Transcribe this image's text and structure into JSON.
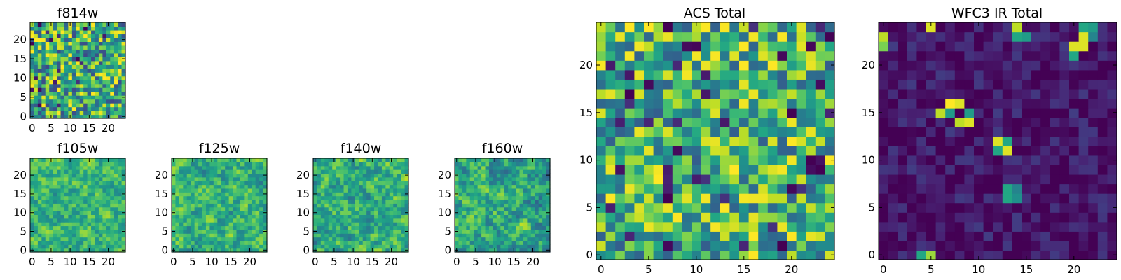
{
  "figure": {
    "description": "Grid of heatmap panels of a 25x25 pixel cutout",
    "colormap": "viridis",
    "colors": {
      "low": "#440154",
      "mid": "#21918c",
      "high": "#fde725"
    }
  },
  "chart_data": [
    {
      "type": "heatmap",
      "panel": "f814w",
      "title": "f814w",
      "grid_size": 25,
      "xticks": [
        0,
        5,
        10,
        15,
        20
      ],
      "yticks": [
        0,
        5,
        10,
        15,
        20
      ],
      "xlim": [
        -0.5,
        24.5
      ],
      "ylim": [
        -0.5,
        24.5
      ],
      "value_range": [
        0,
        1
      ],
      "seed": 11,
      "distribution": "noisy, mostly green-yellow with scattered dark pixels",
      "base": 0.62,
      "amplitude": 0.4,
      "hotspots": []
    },
    {
      "type": "heatmap",
      "panel": "f105w",
      "title": "f105w",
      "grid_size": 25,
      "xticks": [
        0,
        5,
        10,
        15,
        20
      ],
      "yticks": [
        0,
        5,
        10,
        15,
        20
      ],
      "xlim": [
        -0.5,
        24.5
      ],
      "ylim": [
        -0.5,
        24.5
      ],
      "value_range": [
        0,
        1
      ],
      "seed": 23,
      "distribution": "smooth green-yellow noise",
      "base": 0.66,
      "amplitude": 0.34,
      "hotspots": []
    },
    {
      "type": "heatmap",
      "panel": "f125w",
      "title": "f125w",
      "grid_size": 25,
      "xticks": [
        0,
        5,
        10,
        15,
        20
      ],
      "yticks": [
        0,
        5,
        10,
        15,
        20
      ],
      "xlim": [
        -0.5,
        24.5
      ],
      "ylim": [
        -0.5,
        24.5
      ],
      "value_range": [
        0,
        1
      ],
      "seed": 37,
      "distribution": "smooth green-yellow noise",
      "base": 0.64,
      "amplitude": 0.36,
      "hotspots": []
    },
    {
      "type": "heatmap",
      "panel": "f140w",
      "title": "f140w",
      "grid_size": 25,
      "xticks": [
        0,
        5,
        10,
        15,
        20
      ],
      "yticks": [
        0,
        5,
        10,
        15,
        20
      ],
      "xlim": [
        -0.5,
        24.5
      ],
      "ylim": [
        -0.5,
        24.5
      ],
      "value_range": [
        0,
        1
      ],
      "seed": 41,
      "distribution": "smooth green-yellow noise",
      "base": 0.62,
      "amplitude": 0.38,
      "hotspots": []
    },
    {
      "type": "heatmap",
      "panel": "f160w",
      "title": "f160w",
      "grid_size": 25,
      "xticks": [
        0,
        5,
        10,
        15,
        20
      ],
      "yticks": [
        0,
        5,
        10,
        15,
        20
      ],
      "xlim": [
        -0.5,
        24.5
      ],
      "ylim": [
        -0.5,
        24.5
      ],
      "value_range": [
        0,
        1
      ],
      "seed": 53,
      "distribution": "smooth green-yellow noise",
      "base": 0.6,
      "amplitude": 0.4,
      "hotspots": []
    },
    {
      "type": "heatmap",
      "panel": "acs-total",
      "title": "ACS Total",
      "grid_size": 25,
      "xticks": [
        0,
        5,
        10,
        15,
        20
      ],
      "yticks": [
        0,
        5,
        10,
        15,
        20
      ],
      "xlim": [
        -0.5,
        24.5
      ],
      "ylim": [
        -0.5,
        24.5
      ],
      "value_range": [
        0,
        1
      ],
      "seed": 67,
      "distribution": "noisy, mostly green-yellow with a few dark pixels",
      "base": 0.66,
      "amplitude": 0.36,
      "hotspots": [
        {
          "x": 3,
          "y": 17,
          "v": 0.0
        },
        {
          "x": 7,
          "y": 6,
          "v": 0.0
        },
        {
          "x": 20,
          "y": 15,
          "v": 0.0
        },
        {
          "x": 22,
          "y": 10,
          "v": 0.0
        },
        {
          "x": 23,
          "y": 10,
          "v": 0.05
        },
        {
          "x": 19,
          "y": 1,
          "v": 0.0
        },
        {
          "x": 7,
          "y": 24,
          "v": 0.0
        }
      ]
    },
    {
      "type": "heatmap",
      "panel": "wfc3-ir-total",
      "title": "WFC3 IR Total",
      "grid_size": 25,
      "xticks": [
        0,
        5,
        10,
        15,
        20
      ],
      "yticks": [
        0,
        5,
        10,
        15,
        20
      ],
      "xlim": [
        -0.5,
        24.5
      ],
      "ylim": [
        -0.5,
        24.5
      ],
      "value_range": [
        0,
        1
      ],
      "seed": 79,
      "distribution": "mostly dark purple with a few bright pixels",
      "base": 0.06,
      "amplitude": 0.12,
      "hotspots": [
        {
          "x": 7,
          "y": 16,
          "v": 1.0
        },
        {
          "x": 8,
          "y": 16,
          "v": 0.95
        },
        {
          "x": 6,
          "y": 15,
          "v": 0.9
        },
        {
          "x": 7,
          "y": 15,
          "v": 0.55
        },
        {
          "x": 9,
          "y": 15,
          "v": 0.55
        },
        {
          "x": 9,
          "y": 14,
          "v": 0.95
        },
        {
          "x": 8,
          "y": 14,
          "v": 0.9
        },
        {
          "x": 12,
          "y": 12,
          "v": 0.95
        },
        {
          "x": 13,
          "y": 12,
          "v": 0.6
        },
        {
          "x": 13,
          "y": 11,
          "v": 0.95
        },
        {
          "x": 12,
          "y": 11,
          "v": 0.6
        },
        {
          "x": 13,
          "y": 7,
          "v": 0.6
        },
        {
          "x": 13,
          "y": 6,
          "v": 0.6
        },
        {
          "x": 14,
          "y": 6,
          "v": 0.5
        },
        {
          "x": 14,
          "y": 7,
          "v": 0.45
        },
        {
          "x": 5,
          "y": 0,
          "v": 0.85
        },
        {
          "x": 4,
          "y": 0,
          "v": 0.6
        },
        {
          "x": 0,
          "y": 23,
          "v": 0.9
        },
        {
          "x": 0,
          "y": 22,
          "v": 0.8
        },
        {
          "x": 5,
          "y": 24,
          "v": 0.95
        },
        {
          "x": 14,
          "y": 24,
          "v": 0.9
        },
        {
          "x": 14,
          "y": 23,
          "v": 0.6
        },
        {
          "x": 15,
          "y": 23,
          "v": 0.55
        },
        {
          "x": 21,
          "y": 24,
          "v": 0.6
        },
        {
          "x": 21,
          "y": 23,
          "v": 0.95
        },
        {
          "x": 21,
          "y": 22,
          "v": 0.95
        },
        {
          "x": 20,
          "y": 22,
          "v": 0.95
        },
        {
          "x": 20,
          "y": 21,
          "v": 0.6
        },
        {
          "x": 22,
          "y": 24,
          "v": 0.55
        },
        {
          "x": 22,
          "y": 23,
          "v": 0.45
        }
      ]
    }
  ]
}
